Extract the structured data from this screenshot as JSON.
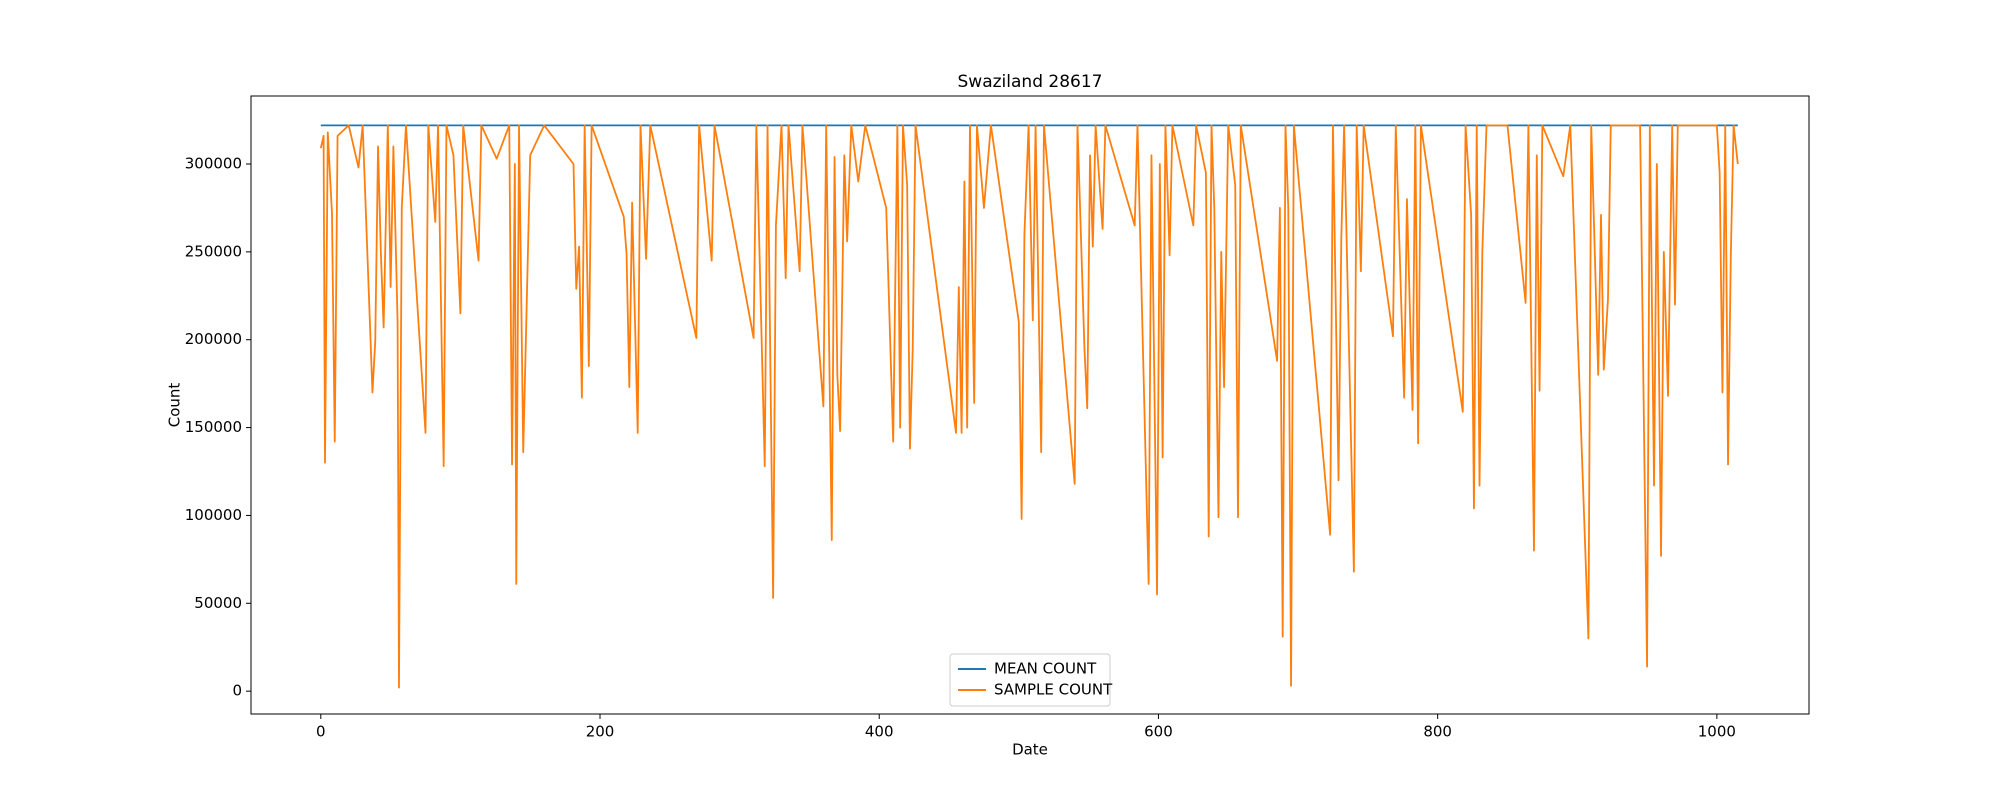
{
  "chart_data": {
    "type": "line",
    "title": "Swaziland 28617",
    "x_label": "Date",
    "y_label": "Count",
    "xlim": [
      -50,
      1066
    ],
    "xticks": [
      0,
      200,
      400,
      600,
      800,
      1000
    ],
    "ylim": [
      -13000,
      338700
    ],
    "yticks": [
      0,
      50000,
      100000,
      150000,
      200000,
      250000,
      300000
    ],
    "legend": "lower center",
    "series": [
      {
        "name": "MEAN COUNT",
        "color": "#1f77b4",
        "x": [
          0,
          1015
        ],
        "values": [
          322000,
          322000
        ]
      },
      {
        "name": "SAMPLE COUNT",
        "color": "#ff7f0e",
        "x": [
          0,
          2,
          3,
          5,
          8,
          10,
          12,
          20,
          27,
          30,
          37,
          39,
          41,
          43,
          45,
          48,
          50,
          52,
          55,
          56,
          58,
          61,
          75,
          77,
          82,
          84,
          88,
          90,
          95,
          100,
          102,
          113,
          115,
          126,
          135,
          137,
          139,
          140,
          142,
          145,
          150,
          160,
          181,
          183,
          185,
          187,
          189,
          192,
          194,
          217,
          219,
          221,
          223,
          227,
          229,
          233,
          236,
          269,
          271,
          280,
          282,
          310,
          312,
          318,
          320,
          324,
          326,
          330,
          333,
          335,
          343,
          345,
          360,
          362,
          366,
          368,
          370,
          372,
          375,
          377,
          380,
          385,
          390,
          405,
          410,
          413,
          415,
          417,
          420,
          422,
          424,
          426,
          455,
          457,
          459,
          461,
          463,
          465,
          468,
          470,
          475,
          480,
          500,
          502,
          504,
          507,
          510,
          512,
          516,
          518,
          540,
          542,
          547,
          549,
          551,
          553,
          555,
          560,
          562,
          583,
          585,
          593,
          595,
          599,
          601,
          603,
          605,
          608,
          610,
          625,
          627,
          634,
          636,
          638,
          640,
          643,
          645,
          647,
          650,
          655,
          657,
          659,
          685,
          687,
          689,
          691,
          693,
          695,
          697,
          723,
          725,
          729,
          731,
          733,
          740,
          742,
          745,
          747,
          768,
          770,
          776,
          778,
          782,
          784,
          786,
          788,
          818,
          820,
          824,
          826,
          828,
          830,
          832,
          835,
          850,
          863,
          865,
          869,
          871,
          873,
          875,
          890,
          895,
          908,
          910,
          915,
          917,
          919,
          922,
          924,
          945,
          950,
          952,
          955,
          957,
          960,
          962,
          965,
          968,
          970,
          972,
          1000,
          1002,
          1004,
          1006,
          1008,
          1010,
          1012,
          1015
        ],
        "values": [
          309000,
          316000,
          130000,
          318000,
          272000,
          142000,
          316000,
          322000,
          298000,
          322000,
          170000,
          199000,
          310000,
          250000,
          207000,
          322000,
          230000,
          310000,
          210000,
          2000,
          275000,
          322000,
          147000,
          322000,
          267000,
          322000,
          128000,
          322000,
          305000,
          215000,
          322000,
          245000,
          322000,
          303000,
          322000,
          129000,
          300000,
          61000,
          322000,
          136000,
          305000,
          322000,
          300000,
          229000,
          253000,
          167000,
          322000,
          185000,
          322000,
          270000,
          249000,
          173000,
          278000,
          147000,
          322000,
          246000,
          322000,
          201000,
          322000,
          245000,
          322000,
          201000,
          322000,
          128000,
          322000,
          53000,
          265000,
          322000,
          235000,
          322000,
          239000,
          322000,
          162000,
          322000,
          86000,
          304000,
          180000,
          148000,
          305000,
          256000,
          322000,
          290000,
          322000,
          275000,
          142000,
          322000,
          150000,
          322000,
          288000,
          138000,
          195000,
          322000,
          147000,
          230000,
          147000,
          290000,
          150000,
          322000,
          164000,
          322000,
          275000,
          322000,
          210000,
          98000,
          260000,
          322000,
          211000,
          322000,
          136000,
          322000,
          118000,
          322000,
          195000,
          161000,
          305000,
          253000,
          322000,
          263000,
          322000,
          265000,
          322000,
          61000,
          305000,
          55000,
          300000,
          133000,
          322000,
          248000,
          322000,
          265000,
          322000,
          295000,
          88000,
          322000,
          275000,
          99000,
          250000,
          173000,
          322000,
          288000,
          99000,
          322000,
          188000,
          275000,
          31000,
          322000,
          275000,
          3000,
          322000,
          89000,
          322000,
          120000,
          258000,
          322000,
          68000,
          322000,
          239000,
          322000,
          202000,
          322000,
          167000,
          280000,
          160000,
          322000,
          141000,
          322000,
          159000,
          322000,
          271000,
          104000,
          322000,
          117000,
          250000,
          322000,
          322000,
          221000,
          322000,
          80000,
          305000,
          171000,
          322000,
          293000,
          322000,
          30000,
          322000,
          180000,
          271000,
          183000,
          223000,
          322000,
          322000,
          14000,
          322000,
          117000,
          300000,
          77000,
          250000,
          168000,
          322000,
          220000,
          322000,
          322000,
          295000,
          170000,
          322000,
          129000,
          248000,
          322000,
          300000
        ]
      }
    ]
  }
}
